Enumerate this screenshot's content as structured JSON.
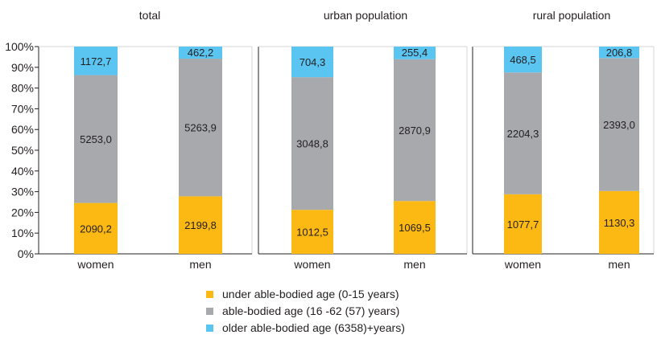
{
  "chart_data": {
    "type": "bar",
    "stacked": "percent",
    "panels": [
      {
        "title": "total",
        "categories": [
          "women",
          "men"
        ],
        "series": [
          {
            "name": "under able-bodied age (0-15 years)",
            "values": [
              2090.2,
              2199.8
            ],
            "labels": [
              "2090,2",
              "2199,8"
            ]
          },
          {
            "name": "able-bodied age (16 -62 (57) years)",
            "values": [
              5253.0,
              5263.9
            ],
            "labels": [
              "5253,0",
              "5263,9"
            ]
          },
          {
            "name": "older able-bodied age (6358)+years)",
            "values": [
              1172.7,
              462.2
            ],
            "labels": [
              "1172,7",
              "462,2"
            ]
          }
        ]
      },
      {
        "title": "urban population",
        "categories": [
          "women",
          "men"
        ],
        "series": [
          {
            "name": "under able-bodied age (0-15 years)",
            "values": [
              1012.5,
              1069.5
            ],
            "labels": [
              "1012,5",
              "1069,5"
            ]
          },
          {
            "name": "able-bodied age (16 -62 (57) years)",
            "values": [
              3048.8,
              2870.9
            ],
            "labels": [
              "3048,8",
              "2870,9"
            ]
          },
          {
            "name": "older able-bodied age (6358)+years)",
            "values": [
              704.3,
              255.4
            ],
            "labels": [
              "704,3",
              "255,4"
            ]
          }
        ]
      },
      {
        "title": "rural population",
        "categories": [
          "women",
          "men"
        ],
        "series": [
          {
            "name": "under able-bodied age (0-15 years)",
            "values": [
              1077.7,
              1130.3
            ],
            "labels": [
              "1077,7",
              "1130,3"
            ]
          },
          {
            "name": "able-bodied age (16 -62 (57) years)",
            "values": [
              2204.3,
              2393.0
            ],
            "labels": [
              "2204,3",
              "2393,0"
            ]
          },
          {
            "name": "older able-bodied age (6358)+years)",
            "values": [
              468.5,
              206.8
            ],
            "labels": [
              "468,5",
              "206,8"
            ]
          }
        ]
      }
    ],
    "y_ticks": [
      "0%",
      "10%",
      "20%",
      "30%",
      "40%",
      "50%",
      "60%",
      "70%",
      "80%",
      "90%",
      "100%"
    ],
    "ylim": [
      0,
      100
    ],
    "grid": false,
    "legend_position": "bottom",
    "colors": [
      "#fdb913",
      "#a7a9ac",
      "#5bc5f2"
    ]
  },
  "legend": {
    "items": [
      {
        "label": "under able-bodied age (0-15 years)",
        "color": "#fdb913"
      },
      {
        "label": "able-bodied age (16 -62 (57) years)",
        "color": "#a7a9ac"
      },
      {
        "label": "older able-bodied age (6358)+years)",
        "color": "#5bc5f2"
      }
    ]
  }
}
